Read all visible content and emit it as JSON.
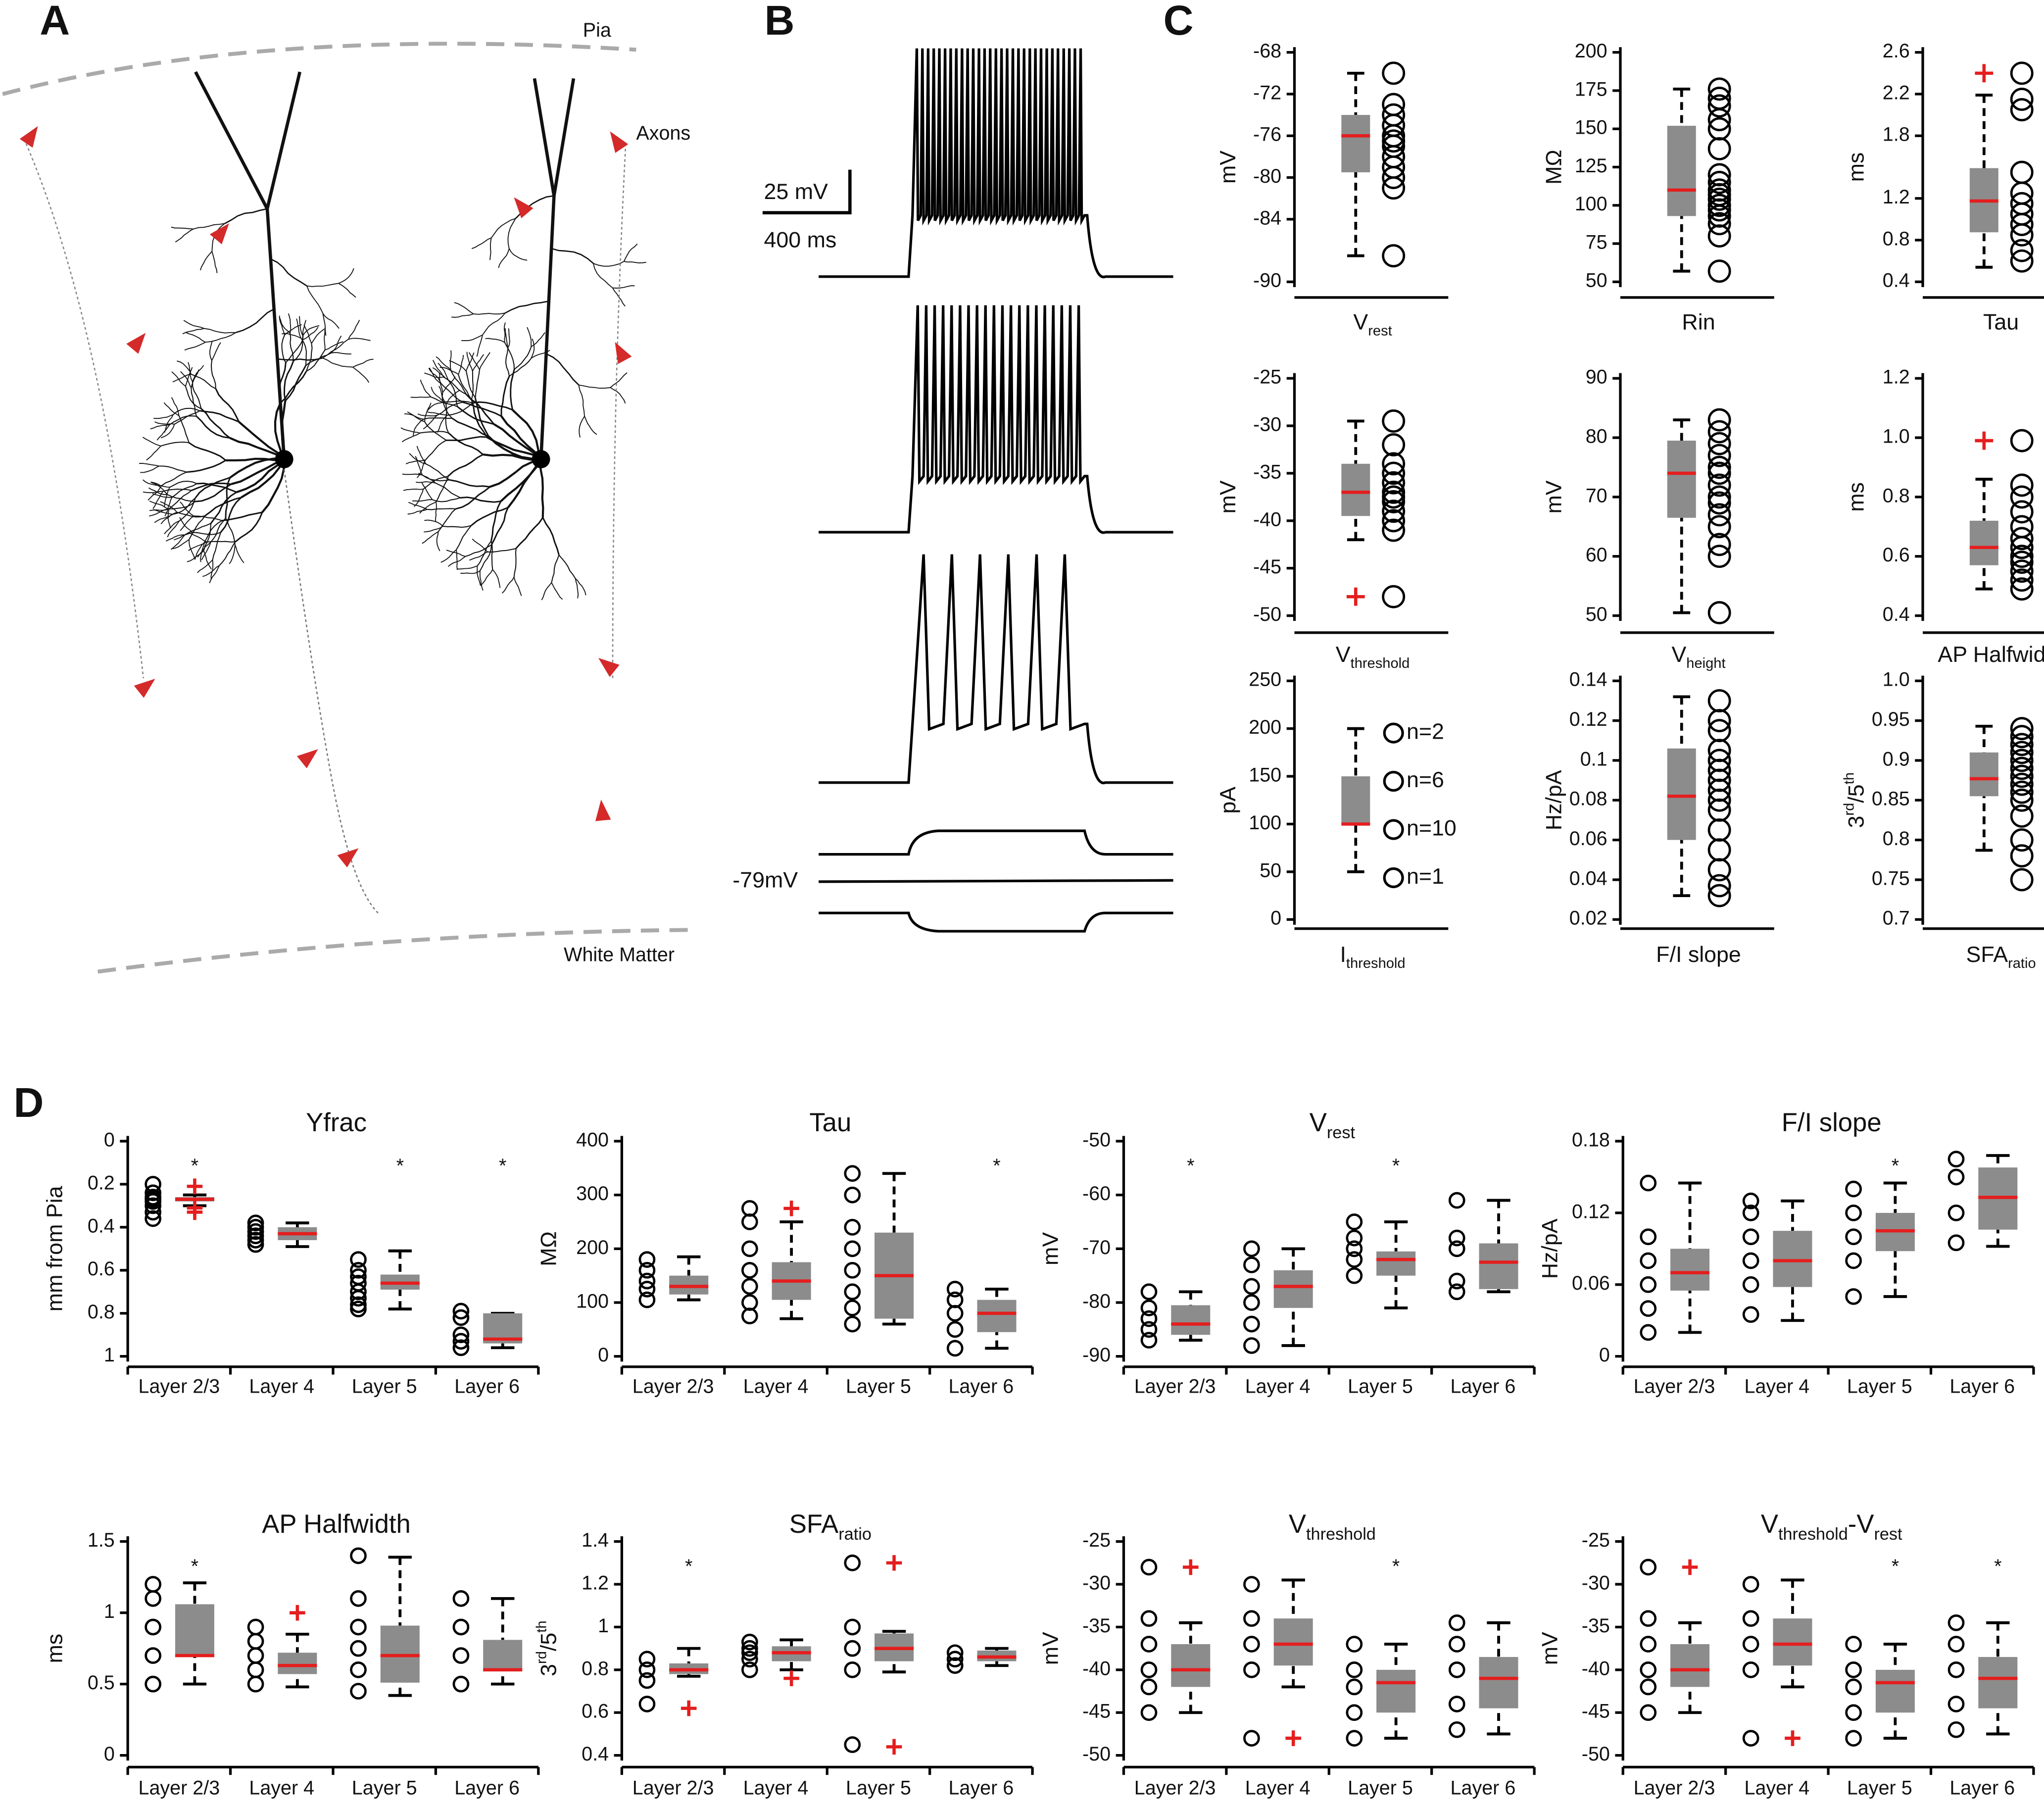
{
  "labels": {
    "panels": [
      "A",
      "B",
      "C",
      "D"
    ],
    "pia": "Pia",
    "axons": "Axons",
    "white_matter": "White Matter",
    "scale_mv": "25 mV",
    "scale_ms": "400 ms",
    "rest_potential": "-79mV"
  },
  "style": {
    "box": "#8c8c8c",
    "median": "#e41e1e",
    "outlier": "#e41e1e",
    "axon_marker": "#d42a2a"
  },
  "chart_data": [
    {
      "type": "box",
      "ylabel": [
        "mV"
      ],
      "xlabel": [
        "V",
        "rest"
      ],
      "ylim": [
        -90,
        -68
      ],
      "yticks": [
        -68,
        -72,
        -76,
        -80,
        -84,
        -90
      ],
      "box": {
        "min": -87.5,
        "q1": -79.5,
        "median": -76,
        "q3": -74,
        "max": -70
      },
      "points": [
        -70,
        -73,
        -74,
        -75,
        -76,
        -76.5,
        -77,
        -78,
        -79,
        -80,
        -81,
        -87.5
      ]
    },
    {
      "type": "box",
      "ylabel": [
        "MΩ"
      ],
      "xlabel": [
        "Rin"
      ],
      "ylim": [
        50,
        200
      ],
      "yticks": [
        200,
        175,
        150,
        125,
        100,
        75,
        50
      ],
      "box": {
        "min": 57,
        "q1": 93,
        "median": 110,
        "q3": 152,
        "max": 176
      },
      "points": [
        57,
        80,
        88,
        93,
        97,
        100,
        104,
        107,
        110,
        115,
        120,
        137,
        150,
        156,
        165,
        170,
        176
      ]
    },
    {
      "type": "box",
      "ylabel": [
        "ms"
      ],
      "xlabel": [
        "Tau"
      ],
      "ylim": [
        0.4,
        2.6
      ],
      "yticks": [
        2.6,
        2.2,
        1.8,
        1.2,
        0.8,
        0.4
      ],
      "box": {
        "min": 0.54,
        "q1": 0.875,
        "median": 1.175,
        "q3": 1.49,
        "max": 2.19
      },
      "outliers": [
        2.4
      ],
      "points": [
        0.6,
        0.7,
        0.85,
        0.95,
        1.05,
        1.15,
        1.25,
        1.45,
        2.05,
        2.15,
        2.4
      ]
    },
    {
      "type": "box",
      "ylabel": [
        "mV"
      ],
      "xlabel": [
        "V",
        "threshold"
      ],
      "ylim": [
        -50,
        -25
      ],
      "yticks": [
        -25,
        -30,
        -35,
        -40,
        -45,
        -50
      ],
      "box": {
        "min": -42,
        "q1": -39.5,
        "median": -37,
        "q3": -34,
        "max": -29.5
      },
      "outliers": [
        -48
      ],
      "points": [
        -29.5,
        -32,
        -34,
        -35,
        -36,
        -37,
        -37.5,
        -38,
        -39,
        -40,
        -41,
        -48
      ]
    },
    {
      "type": "box",
      "ylabel": [
        "mV"
      ],
      "xlabel": [
        "V",
        "height"
      ],
      "ylim": [
        50,
        90
      ],
      "yticks": [
        90,
        80,
        70,
        60,
        50
      ],
      "box": {
        "min": 50.5,
        "q1": 66.5,
        "median": 74,
        "q3": 79.5,
        "max": 83
      },
      "points": [
        50.5,
        60,
        62,
        65,
        67,
        69,
        70,
        72,
        74,
        75,
        77,
        79,
        81,
        83
      ]
    },
    {
      "type": "box",
      "ylabel": [
        "ms"
      ],
      "xlabel": [
        "AP Halfwidth"
      ],
      "ylim": [
        0.4,
        1.2
      ],
      "yticks": [
        {
          "value": 1.2,
          "label": "1.2"
        },
        {
          "value": 1,
          "label": "1.0"
        },
        0.8,
        0.6,
        0.4
      ],
      "box": {
        "min": 0.49,
        "q1": 0.57,
        "median": 0.63,
        "q3": 0.72,
        "max": 0.86
      },
      "outliers": [
        0.99
      ],
      "points": [
        0.49,
        0.52,
        0.55,
        0.58,
        0.6,
        0.63,
        0.66,
        0.7,
        0.75,
        0.8,
        0.84,
        0.99
      ]
    },
    {
      "type": "box",
      "ylabel": [
        "pA"
      ],
      "xlabel": [
        "I",
        "threshold"
      ],
      "ylim": [
        0,
        250
      ],
      "yticks": [
        250,
        200,
        150,
        100,
        50,
        0
      ],
      "box": {
        "min": 50,
        "q1": 100,
        "median": 100,
        "q3": 150,
        "max": 200
      },
      "legend": [
        "n=2",
        "n=6",
        "n=10",
        "n=1"
      ]
    },
    {
      "type": "box",
      "ylabel": [
        "Hz/pA"
      ],
      "xlabel": [
        "F/I slope"
      ],
      "ylim": [
        0.02,
        0.14
      ],
      "yticks": [
        0.14,
        0.12,
        0.1,
        0.08,
        0.06,
        0.04,
        0.02
      ],
      "box": {
        "min": 0.032,
        "q1": 0.06,
        "median": 0.082,
        "q3": 0.106,
        "max": 0.132
      },
      "points": [
        0.032,
        0.037,
        0.045,
        0.055,
        0.065,
        0.075,
        0.08,
        0.085,
        0.09,
        0.095,
        0.1,
        0.105,
        0.115,
        0.12,
        0.13
      ]
    },
    {
      "type": "box",
      "ylabel": [
        "3",
        "rd",
        "/5",
        "th"
      ],
      "xlabel": [
        "SFA",
        "ratio"
      ],
      "ylim": [
        0.7,
        1
      ],
      "yticks": [
        {
          "value": 1,
          "label": "1.0"
        },
        0.95,
        0.9,
        0.85,
        0.8,
        0.75,
        0.7
      ],
      "box": {
        "min": 0.787,
        "q1": 0.855,
        "median": 0.877,
        "q3": 0.91,
        "max": 0.943
      },
      "points": [
        0.75,
        0.78,
        0.8,
        0.83,
        0.85,
        0.86,
        0.87,
        0.88,
        0.89,
        0.9,
        0.91,
        0.92,
        0.93,
        0.94
      ]
    },
    {
      "type": "box",
      "title": [
        "Yfrac"
      ],
      "ylabel": [
        "mm from Pia"
      ],
      "categories": [
        "Layer 2/3",
        "Layer 4",
        "Layer 5",
        "Layer 6"
      ],
      "ylim": [
        0,
        1
      ],
      "y_inverted": true,
      "yticks": [
        0,
        0.2,
        0.4,
        0.6,
        0.8,
        1
      ],
      "boxes": [
        {
          "min": 0.25,
          "q1": 0.26,
          "median": 0.27,
          "q3": 0.28,
          "max": 0.3
        },
        {
          "min": 0.38,
          "q1": 0.4,
          "median": 0.43,
          "q3": 0.46,
          "max": 0.49
        },
        {
          "min": 0.51,
          "q1": 0.62,
          "median": 0.66,
          "q3": 0.69,
          "max": 0.78
        },
        {
          "min": 0.8,
          "q1": 0.8,
          "median": 0.92,
          "q3": 0.94,
          "max": 0.96
        }
      ],
      "outliers": [
        [
          0.21,
          0.31,
          0.33
        ],
        [],
        [],
        []
      ],
      "points": [
        [
          0.2,
          0.24,
          0.26,
          0.27,
          0.28,
          0.3,
          0.33,
          0.36
        ],
        [
          0.38,
          0.4,
          0.42,
          0.44,
          0.46,
          0.48
        ],
        [
          0.55,
          0.6,
          0.63,
          0.66,
          0.7,
          0.73,
          0.76,
          0.78
        ],
        [
          0.79,
          0.82,
          0.9,
          0.93,
          0.96
        ]
      ],
      "significance": [
        "*",
        null,
        "*",
        "*"
      ]
    },
    {
      "type": "box",
      "title": [
        "Tau"
      ],
      "ylabel": [
        "MΩ"
      ],
      "categories": [
        "Layer 2/3",
        "Layer 4",
        "Layer 5",
        "Layer 6"
      ],
      "ylim": [
        0,
        400
      ],
      "yticks": [
        0,
        100,
        200,
        300,
        400
      ],
      "boxes": [
        {
          "min": 105,
          "q1": 115,
          "median": 130,
          "q3": 150,
          "max": 185
        },
        {
          "min": 70,
          "q1": 105,
          "median": 140,
          "q3": 175,
          "max": 250
        },
        {
          "min": 60,
          "q1": 70,
          "median": 150,
          "q3": 230,
          "max": 340
        },
        {
          "min": 15,
          "q1": 45,
          "median": 80,
          "q3": 105,
          "max": 125
        }
      ],
      "outliers": [
        [],
        [
          275
        ],
        [],
        []
      ],
      "points": [
        [
          105,
          125,
          140,
          160,
          180
        ],
        [
          75,
          100,
          130,
          160,
          200,
          250,
          275
        ],
        [
          60,
          90,
          120,
          160,
          200,
          240,
          300,
          340
        ],
        [
          15,
          50,
          80,
          105,
          125
        ]
      ],
      "significance": [
        null,
        null,
        null,
        "*"
      ]
    },
    {
      "type": "box",
      "title": [
        "V",
        "rest"
      ],
      "ylabel": [
        "mV"
      ],
      "categories": [
        "Layer 2/3",
        "Layer 4",
        "Layer 5",
        "Layer 6"
      ],
      "ylim": [
        -90,
        -50
      ],
      "yticks": [
        -90,
        -80,
        -70,
        -60,
        -50
      ],
      "boxes": [
        {
          "min": -87,
          "q1": -86,
          "median": -84,
          "q3": -80.5,
          "max": -78
        },
        {
          "min": -88,
          "q1": -81,
          "median": -77,
          "q3": -74,
          "max": -70
        },
        {
          "min": -81,
          "q1": -75,
          "median": -72,
          "q3": -70.5,
          "max": -65
        },
        {
          "min": -78,
          "q1": -77.5,
          "median": -72.5,
          "q3": -69,
          "max": -61
        }
      ],
      "points": [
        [
          -87,
          -85,
          -83,
          -81,
          -78
        ],
        [
          -88,
          -84,
          -80,
          -77,
          -73,
          -70
        ],
        [
          -75,
          -72,
          -70,
          -68,
          -65
        ],
        [
          -78,
          -76,
          -70,
          -68,
          -61
        ]
      ],
      "significance": [
        "*",
        null,
        "*",
        null
      ]
    },
    {
      "type": "box",
      "title": [
        "F/I slope"
      ],
      "ylabel": [
        "Hz/pA"
      ],
      "categories": [
        "Layer 2/3",
        "Layer 4",
        "Layer 5",
        "Layer 6"
      ],
      "ylim": [
        0,
        0.18
      ],
      "yticks": [
        0,
        0.06,
        0.12,
        0.18
      ],
      "boxes": [
        {
          "min": 0.02,
          "q1": 0.055,
          "median": 0.07,
          "q3": 0.09,
          "max": 0.145
        },
        {
          "min": 0.03,
          "q1": 0.058,
          "median": 0.08,
          "q3": 0.105,
          "max": 0.13
        },
        {
          "min": 0.05,
          "q1": 0.088,
          "median": 0.105,
          "q3": 0.12,
          "max": 0.145
        },
        {
          "min": 0.092,
          "q1": 0.106,
          "median": 0.133,
          "q3": 0.158,
          "max": 0.168
        }
      ],
      "points": [
        [
          0.02,
          0.04,
          0.06,
          0.08,
          0.1,
          0.145
        ],
        [
          0.035,
          0.06,
          0.08,
          0.1,
          0.12,
          0.13
        ],
        [
          0.05,
          0.08,
          0.1,
          0.12,
          0.14
        ],
        [
          0.095,
          0.12,
          0.15,
          0.165
        ]
      ],
      "significance": [
        null,
        null,
        "*",
        null
      ]
    },
    {
      "type": "box",
      "title": [
        "AP Halfwidth"
      ],
      "ylabel": [
        "ms"
      ],
      "categories": [
        "Layer 2/3",
        "Layer 4",
        "Layer 5",
        "Layer 6"
      ],
      "ylim": [
        0,
        1.5
      ],
      "yticks": [
        0,
        0.5,
        1,
        1.5
      ],
      "boxes": [
        {
          "min": 0.5,
          "q1": 0.7,
          "median": 0.7,
          "q3": 1.06,
          "max": 1.21
        },
        {
          "min": 0.48,
          "q1": 0.57,
          "median": 0.63,
          "q3": 0.72,
          "max": 0.85
        },
        {
          "min": 0.42,
          "q1": 0.51,
          "median": 0.7,
          "q3": 0.91,
          "max": 1.39
        },
        {
          "min": 0.5,
          "q1": 0.6,
          "median": 0.6,
          "q3": 0.81,
          "max": 1.1
        }
      ],
      "outliers": [
        [],
        [
          1
        ],
        [],
        []
      ],
      "points": [
        [
          0.5,
          0.7,
          0.9,
          1.1,
          1.2
        ],
        [
          0.5,
          0.6,
          0.7,
          0.8,
          0.9
        ],
        [
          0.45,
          0.6,
          0.75,
          0.9,
          1.1,
          1.4
        ],
        [
          0.5,
          0.7,
          0.9,
          1.1
        ]
      ],
      "significance": [
        "*",
        null,
        null,
        null
      ]
    },
    {
      "type": "box",
      "title": [
        "SFA",
        "ratio"
      ],
      "ylabel": [
        "3",
        "rd",
        "/5",
        "th"
      ],
      "categories": [
        "Layer 2/3",
        "Layer 4",
        "Layer 5",
        "Layer 6"
      ],
      "ylim": [
        0.4,
        1.4
      ],
      "yticks": [
        0.4,
        0.6,
        0.8,
        1,
        1.2,
        1.4
      ],
      "boxes": [
        {
          "min": 0.77,
          "q1": 0.78,
          "median": 0.8,
          "q3": 0.83,
          "max": 0.9
        },
        {
          "min": 0.8,
          "q1": 0.84,
          "median": 0.88,
          "q3": 0.91,
          "max": 0.94
        },
        {
          "min": 0.79,
          "q1": 0.84,
          "median": 0.9,
          "q3": 0.97,
          "max": 0.98
        },
        {
          "min": 0.82,
          "q1": 0.84,
          "median": 0.86,
          "q3": 0.89,
          "max": 0.9
        }
      ],
      "outliers": [
        [
          0.62
        ],
        [
          0.76
        ],
        [
          1.3,
          0.44
        ],
        []
      ],
      "points": [
        [
          0.64,
          0.75,
          0.8,
          0.85
        ],
        [
          0.8,
          0.85,
          0.88,
          0.9,
          0.93
        ],
        [
          0.45,
          0.8,
          0.9,
          1,
          1.3
        ],
        [
          0.82,
          0.85,
          0.88
        ]
      ],
      "significance": [
        "*",
        null,
        null,
        null
      ]
    },
    {
      "type": "box",
      "title": [
        "V",
        "threshold"
      ],
      "ylabel": [
        "mV"
      ],
      "categories": [
        "Layer 2/3",
        "Layer 4",
        "Layer 5",
        "Layer 6"
      ],
      "ylim": [
        -50,
        -25
      ],
      "yticks": [
        -50,
        -45,
        -40,
        -35,
        -30,
        -25
      ],
      "boxes": [
        {
          "min": -45,
          "q1": -42,
          "median": -40,
          "q3": -37,
          "max": -34.5
        },
        {
          "min": -42,
          "q1": -39.5,
          "median": -37,
          "q3": -34,
          "max": -29.5
        },
        {
          "min": -48,
          "q1": -45,
          "median": -41.5,
          "q3": -40,
          "max": -37
        },
        {
          "min": -47.5,
          "q1": -44.5,
          "median": -41,
          "q3": -38.5,
          "max": -34.5
        }
      ],
      "outliers": [
        [
          -28
        ],
        [
          -48
        ],
        [],
        []
      ],
      "points": [
        [
          -45,
          -42,
          -40,
          -37,
          -34,
          -28
        ],
        [
          -48,
          -40,
          -37,
          -34,
          -30
        ],
        [
          -48,
          -45,
          -42,
          -40,
          -37
        ],
        [
          -47,
          -44,
          -40,
          -37,
          -34.5
        ]
      ],
      "significance": [
        null,
        null,
        "*",
        null
      ]
    },
    {
      "type": "box",
      "title": [
        "V",
        "threshold",
        "-V",
        "rest"
      ],
      "ylabel": [
        "mV"
      ],
      "categories": [
        "Layer 2/3",
        "Layer 4",
        "Layer 5",
        "Layer 6"
      ],
      "ylim": [
        -50,
        -25
      ],
      "yticks": [
        -50,
        -45,
        -40,
        -35,
        -30,
        -25
      ],
      "boxes": [
        {
          "min": -45,
          "q1": -42,
          "median": -40,
          "q3": -37,
          "max": -34.5
        },
        {
          "min": -42,
          "q1": -39.5,
          "median": -37,
          "q3": -34,
          "max": -29.5
        },
        {
          "min": -48,
          "q1": -45,
          "median": -41.5,
          "q3": -40,
          "max": -37
        },
        {
          "min": -47.5,
          "q1": -44.5,
          "median": -41,
          "q3": -38.5,
          "max": -34.5
        }
      ],
      "outliers": [
        [
          -28
        ],
        [
          -48
        ],
        [],
        []
      ],
      "points": [
        [
          -45,
          -42,
          -40,
          -37,
          -34,
          -28
        ],
        [
          -48,
          -40,
          -37,
          -34,
          -30
        ],
        [
          -48,
          -45,
          -42,
          -40,
          -37
        ],
        [
          -47,
          -44,
          -40,
          -37,
          -34.5
        ]
      ],
      "significance": [
        null,
        null,
        "*",
        "*"
      ]
    }
  ]
}
